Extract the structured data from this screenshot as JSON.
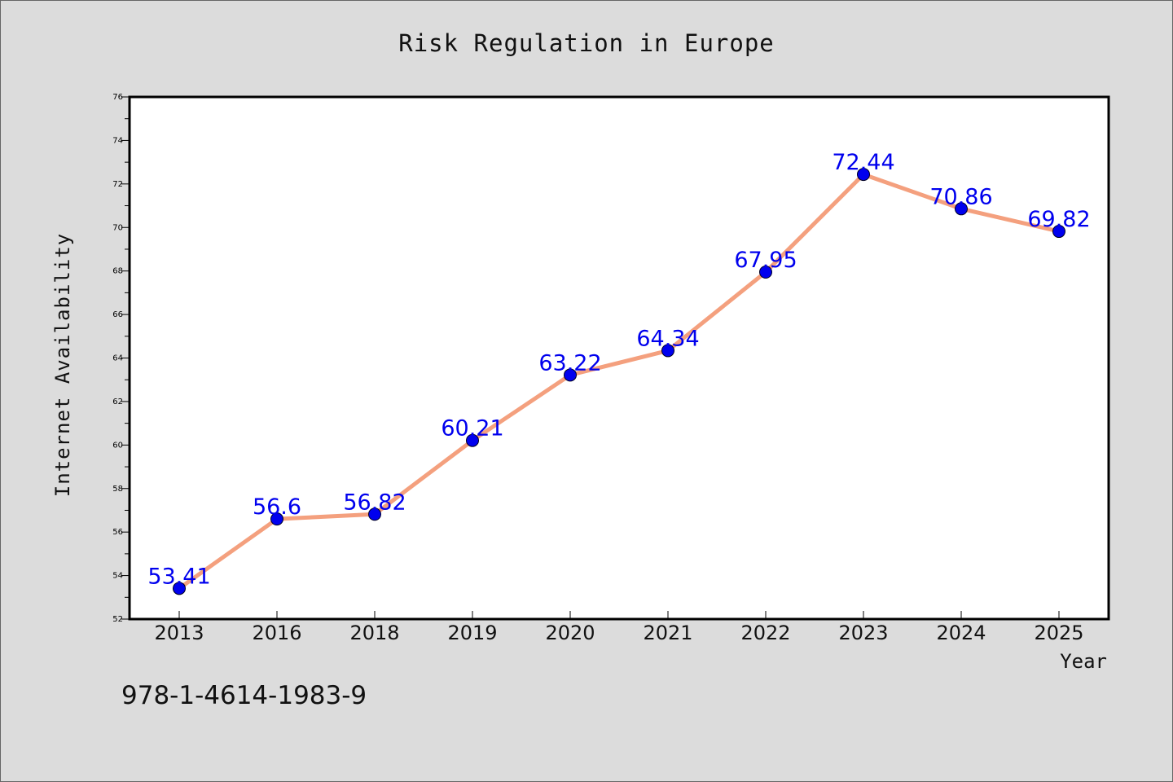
{
  "chart_data": {
    "type": "line",
    "title": "Risk Regulation in Europe",
    "xlabel": "Year",
    "ylabel": "Internet Availability",
    "categories": [
      "2013",
      "2016",
      "2018",
      "2019",
      "2020",
      "2021",
      "2022",
      "2023",
      "2024",
      "2025"
    ],
    "series": [
      {
        "values": [
          53.41,
          56.6,
          56.82,
          60.21,
          63.22,
          64.34,
          67.95,
          72.44,
          70.86,
          69.82
        ]
      }
    ],
    "data_labels": [
      "53.41",
      "56.6",
      "56.82",
      "60.21",
      "63.22",
      "64.34",
      "67.95",
      "72.44",
      "70.86",
      "69.82"
    ],
    "ylim": [
      52,
      76
    ],
    "yticks": [
      52,
      54,
      56,
      58,
      60,
      62,
      64,
      66,
      68,
      70,
      72,
      74,
      76
    ],
    "grid": false,
    "colors": {
      "line": "#f4a07e",
      "marker": "#0000ee",
      "label": "#0000ee",
      "background": "#dcdcdc",
      "plot_background": "#ffffff"
    }
  },
  "annotation": "978-1-4614-1983-9"
}
